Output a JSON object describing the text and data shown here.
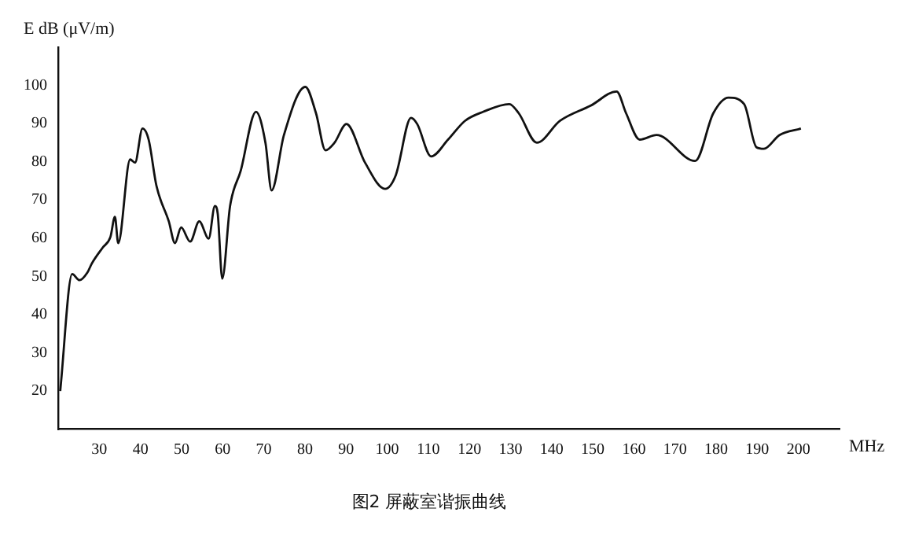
{
  "chart_data": {
    "type": "line",
    "title": "图2 屏蔽室谐振曲线",
    "xlabel": "MHz",
    "ylabel": "E dB (μV/m)",
    "x": [
      20.5,
      23.4,
      25.2,
      27.1,
      28.2,
      30.8,
      32.7,
      33.8,
      34.6,
      37.5,
      38.7,
      40.5,
      42,
      43.9,
      46.9,
      48.4,
      49.9,
      52.1,
      54.3,
      56.6,
      58.1,
      58.8,
      59.9,
      61.8,
      64.4,
      68.1,
      70.4,
      71.9,
      74.9,
      80.1,
      82.7,
      85,
      87.2,
      90.1,
      94.6,
      99.5,
      102.1,
      105.8,
      107.3,
      110.7,
      114.8,
      118.9,
      123.4,
      129.7,
      132,
      136.4,
      142,
      149.5,
      155.8,
      158.1,
      161.4,
      165.5,
      174.9,
      179.3,
      183,
      186.8,
      189.8,
      191.6,
      195.4,
      200.6
    ],
    "series": [
      {
        "color": "#111111",
        "values": [
          20,
          50.6,
          49,
          51,
          53.4,
          57.5,
          60.3,
          65.6,
          58.7,
          80.6,
          79.8,
          88.7,
          85.8,
          73.7,
          64.4,
          58.7,
          62.8,
          59.1,
          64.4,
          59.9,
          68.4,
          66.4,
          49.4,
          68.4,
          77.7,
          93.1,
          85,
          72.5,
          87,
          99.6,
          92.7,
          83,
          85,
          89.9,
          79.8,
          72.9,
          76.5,
          91.5,
          89.9,
          81.4,
          85.8,
          90.7,
          93.1,
          95.1,
          92.7,
          85,
          90.7,
          94.7,
          98.4,
          92.7,
          85.8,
          87,
          80.2,
          92.7,
          96.8,
          95.1,
          83.8,
          83.4,
          87,
          88.7
        ]
      }
    ],
    "xlim": [
      20,
      210
    ],
    "xticks": [
      30,
      40,
      50,
      60,
      70,
      80,
      90,
      100,
      110,
      120,
      130,
      140,
      150,
      160,
      170,
      180,
      190,
      200
    ],
    "ylim": [
      10,
      110
    ],
    "yticks": [
      20,
      30,
      40,
      50,
      60,
      70,
      80,
      90,
      100
    ],
    "grid": false,
    "legend": false,
    "marker": "none",
    "line_style": "solid"
  }
}
